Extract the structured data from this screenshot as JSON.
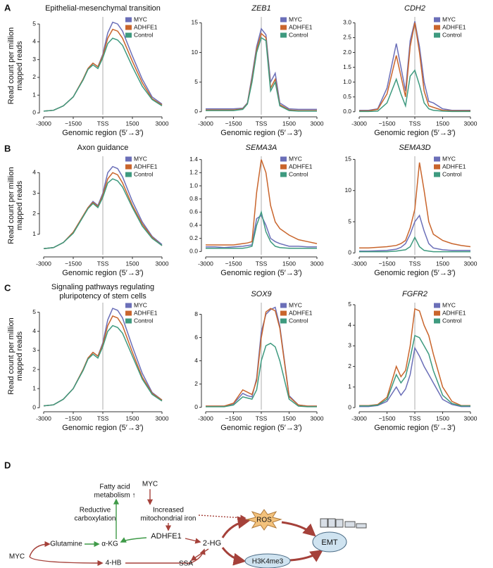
{
  "panels": [
    "A",
    "B",
    "C"
  ],
  "chart_data": [
    {
      "type": "line",
      "title": "Epithelial-mesenchymal transition",
      "ylabel": [
        "Read count per million",
        "mapped reads"
      ],
      "xlabel": "Genomic region (5′→3′)",
      "legend": "upper right",
      "x": [
        -3000,
        -2500,
        -2000,
        -1500,
        -1000,
        -750,
        -500,
        -250,
        0,
        250,
        500,
        750,
        1000,
        1500,
        2000,
        2500,
        3000
      ],
      "xlim": [
        -3000,
        3000
      ],
      "xticks": [
        -3000,
        {
          "value": -1500,
          "label": "−1500"
        },
        {
          "value": 0,
          "label": "TSS"
        },
        1500,
        3000
      ],
      "ylim": [
        -0.1,
        5.4
      ],
      "yticks": [
        0,
        1,
        2,
        3,
        4,
        5
      ],
      "series": [
        {
          "name": "MYC",
          "color": "#6b6fb8",
          "values": [
            0.1,
            0.15,
            0.4,
            0.9,
            1.9,
            2.5,
            2.8,
            2.6,
            3.3,
            4.5,
            5.1,
            5.0,
            4.6,
            3.2,
            1.9,
            0.9,
            0.5
          ]
        },
        {
          "name": "ADHFE1",
          "color": "#c9652c",
          "values": [
            0.1,
            0.15,
            0.4,
            0.9,
            1.9,
            2.5,
            2.8,
            2.6,
            3.2,
            4.2,
            4.7,
            4.6,
            4.2,
            2.9,
            1.7,
            0.8,
            0.45
          ]
        },
        {
          "name": "Control",
          "color": "#3e9a7f",
          "values": [
            0.1,
            0.15,
            0.4,
            0.9,
            1.85,
            2.45,
            2.7,
            2.5,
            3.1,
            3.9,
            4.2,
            4.1,
            3.8,
            2.6,
            1.5,
            0.75,
            0.4
          ]
        }
      ]
    },
    {
      "type": "line",
      "title": "ZEB1",
      "title_italic": true,
      "xlabel": "Genomic region (5′→3′)",
      "legend": "upper right",
      "x": [
        -3000,
        -2500,
        -2000,
        -1500,
        -1000,
        -750,
        -500,
        -250,
        0,
        250,
        500,
        750,
        1000,
        1500,
        2000,
        2500,
        3000
      ],
      "xlim": [
        -3000,
        3000
      ],
      "xticks": [
        -3000,
        {
          "value": -1500,
          "label": "−1500"
        },
        {
          "value": 0,
          "label": "TSS"
        },
        1500,
        3000
      ],
      "ylim": [
        -0.5,
        16
      ],
      "yticks": [
        0,
        5,
        10,
        15
      ],
      "series": [
        {
          "name": "MYC",
          "color": "#6b6fb8",
          "values": [
            0.5,
            0.5,
            0.5,
            0.5,
            0.6,
            1.5,
            6,
            11,
            14,
            13,
            5,
            6.5,
            1.5,
            0.5,
            0.4,
            0.4,
            0.4
          ]
        },
        {
          "name": "ADHFE1",
          "color": "#c9652c",
          "values": [
            0.3,
            0.3,
            0.3,
            0.3,
            0.5,
            1.4,
            5.5,
            10.5,
            13.2,
            12.5,
            4,
            5.5,
            1.2,
            0.3,
            0.2,
            0.2,
            0.2
          ]
        },
        {
          "name": "Control",
          "color": "#3e9a7f",
          "values": [
            0.2,
            0.2,
            0.2,
            0.2,
            0.4,
            1.3,
            5,
            10,
            12.5,
            12,
            3.5,
            5,
            1,
            0.2,
            0.1,
            0.1,
            0.1
          ]
        }
      ]
    },
    {
      "type": "line",
      "title": "CDH2",
      "title_italic": true,
      "xlabel": "Genomic region (5′→3′)",
      "legend": "upper right",
      "x": [
        -3000,
        -2500,
        -2000,
        -1500,
        -1000,
        -750,
        -500,
        -250,
        0,
        250,
        500,
        750,
        1000,
        1500,
        2000,
        2500,
        3000
      ],
      "xlim": [
        -3000,
        3000
      ],
      "xticks": [
        -3000,
        {
          "value": -1500,
          "label": "−1500"
        },
        {
          "value": 0,
          "label": "TSS"
        },
        1500,
        3000
      ],
      "ylim": [
        -0.1,
        3.2
      ],
      "yticks": [
        {
          "value": 0,
          "label": "0.0"
        },
        0.5,
        {
          "value": 1,
          "label": "1.0"
        },
        1.5,
        {
          "value": 2,
          "label": "2.0"
        },
        2.5,
        {
          "value": 3,
          "label": "3.0"
        }
      ],
      "series": [
        {
          "name": "MYC",
          "color": "#6b6fb8",
          "values": [
            0.05,
            0.05,
            0.1,
            0.8,
            2.3,
            1.5,
            0.7,
            2.4,
            3.05,
            2.2,
            1.0,
            0.35,
            0.3,
            0.1,
            0.05,
            0.05,
            0.05
          ]
        },
        {
          "name": "ADHFE1",
          "color": "#c9652c",
          "values": [
            0.03,
            0.03,
            0.08,
            0.6,
            1.9,
            1.2,
            0.5,
            2.2,
            3.0,
            2.0,
            0.7,
            0.2,
            0.15,
            0.05,
            0.03,
            0.03,
            0.03
          ]
        },
        {
          "name": "Control",
          "color": "#3e9a7f",
          "values": [
            0.01,
            0.01,
            0.02,
            0.3,
            1.1,
            0.6,
            0.2,
            1.2,
            1.4,
            0.9,
            0.3,
            0.1,
            0.05,
            0.02,
            0.01,
            0.01,
            0.01
          ]
        }
      ]
    },
    {
      "type": "line",
      "title": "Axon guidance",
      "ylabel": [
        "Read count per million",
        "mapped reads"
      ],
      "xlabel": "Genomic region (5′→3′)",
      "legend": "upper right",
      "x": [
        -3000,
        -2500,
        -2000,
        -1500,
        -1000,
        -750,
        -500,
        -250,
        0,
        250,
        500,
        750,
        1000,
        1500,
        2000,
        2500,
        3000
      ],
      "xlim": [
        -3000,
        3000
      ],
      "xticks": [
        -3000,
        {
          "value": -1500,
          "label": "−1500"
        },
        {
          "value": 0,
          "label": "TSS"
        },
        1500,
        3000
      ],
      "ylim": [
        0,
        4.8
      ],
      "yticks": [
        1,
        2,
        3,
        4
      ],
      "series": [
        {
          "name": "MYC",
          "color": "#6b6fb8",
          "values": [
            0.3,
            0.35,
            0.6,
            1.1,
            1.9,
            2.3,
            2.6,
            2.4,
            3.0,
            4.0,
            4.3,
            4.2,
            3.8,
            2.6,
            1.6,
            0.9,
            0.5
          ]
        },
        {
          "name": "ADHFE1",
          "color": "#c9652c",
          "values": [
            0.3,
            0.35,
            0.6,
            1.1,
            1.9,
            2.3,
            2.55,
            2.35,
            2.9,
            3.7,
            4.0,
            3.9,
            3.5,
            2.4,
            1.5,
            0.85,
            0.45
          ]
        },
        {
          "name": "Control",
          "color": "#3e9a7f",
          "values": [
            0.3,
            0.35,
            0.6,
            1.05,
            1.85,
            2.25,
            2.5,
            2.3,
            2.8,
            3.5,
            3.7,
            3.6,
            3.3,
            2.3,
            1.4,
            0.8,
            0.45
          ]
        }
      ]
    },
    {
      "type": "line",
      "title": "SEMA3A",
      "title_italic": true,
      "xlabel": "Genomic region (5′→3′)",
      "legend": "upper right",
      "x": [
        -3000,
        -2500,
        -2000,
        -1500,
        -1000,
        -750,
        -500,
        -250,
        0,
        250,
        500,
        750,
        1000,
        1500,
        2000,
        2500,
        3000
      ],
      "xlim": [
        -3000,
        3000
      ],
      "xticks": [
        -3000,
        {
          "value": -1500,
          "label": "−1500"
        },
        {
          "value": 0,
          "label": "TSS"
        },
        1500,
        3000
      ],
      "ylim": [
        -0.05,
        1.45
      ],
      "yticks": [
        {
          "value": 0,
          "label": "0.0"
        },
        0.2,
        0.4,
        0.6,
        0.8,
        {
          "value": 1,
          "label": "1.0"
        },
        1.2,
        1.4
      ],
      "series": [
        {
          "name": "MYC",
          "color": "#6b6fb8",
          "values": [
            0.07,
            0.07,
            0.06,
            0.07,
            0.08,
            0.09,
            0.1,
            0.5,
            0.55,
            0.4,
            0.2,
            0.15,
            0.12,
            0.08,
            0.08,
            0.07,
            0.07
          ]
        },
        {
          "name": "ADHFE1",
          "color": "#c9652c",
          "values": [
            0.1,
            0.1,
            0.1,
            0.1,
            0.12,
            0.13,
            0.15,
            0.9,
            1.4,
            1.2,
            0.7,
            0.45,
            0.35,
            0.25,
            0.18,
            0.15,
            0.12
          ]
        },
        {
          "name": "Control",
          "color": "#3e9a7f",
          "values": [
            0.05,
            0.05,
            0.05,
            0.05,
            0.05,
            0.06,
            0.08,
            0.4,
            0.6,
            0.3,
            0.15,
            0.08,
            0.06,
            0.05,
            0.05,
            0.05,
            0.05
          ]
        }
      ]
    },
    {
      "type": "line",
      "title": "SEMA3D",
      "title_italic": true,
      "xlabel": "Genomic region (5′→3′)",
      "legend": "upper right",
      "x": [
        -3000,
        -2500,
        -2000,
        -1500,
        -1000,
        -750,
        -500,
        -250,
        0,
        250,
        500,
        750,
        1000,
        1500,
        2000,
        2500,
        3000
      ],
      "xlim": [
        -3000,
        3000
      ],
      "xticks": [
        -3000,
        {
          "value": -1500,
          "label": "−1500"
        },
        {
          "value": 0,
          "label": "TSS"
        },
        1500,
        3000
      ],
      "ylim": [
        -0.3,
        15.5
      ],
      "yticks": [
        0,
        5,
        10,
        15
      ],
      "series": [
        {
          "name": "MYC",
          "color": "#6b6fb8",
          "values": [
            0.3,
            0.3,
            0.35,
            0.4,
            0.6,
            0.9,
            1.5,
            3,
            5,
            6,
            3.5,
            1.5,
            0.8,
            0.5,
            0.4,
            0.4,
            0.4
          ]
        },
        {
          "name": "ADHFE1",
          "color": "#c9652c",
          "values": [
            0.8,
            0.8,
            0.9,
            1,
            1.2,
            1.5,
            2,
            4,
            7,
            14.5,
            10,
            5,
            3,
            2,
            1.5,
            1.2,
            1
          ]
        },
        {
          "name": "Control",
          "color": "#3e9a7f",
          "values": [
            0.2,
            0.2,
            0.2,
            0.2,
            0.3,
            0.4,
            0.5,
            1,
            2.5,
            1,
            0.4,
            0.3,
            0.2,
            0.2,
            0.2,
            0.2,
            0.2
          ]
        }
      ]
    },
    {
      "type": "line",
      "title": [
        "Signaling pathways regulating",
        "pluripotency of stem cells"
      ],
      "ylabel": [
        "Read count per million",
        "mapped reads"
      ],
      "xlabel": "Genomic region (5′→3′)",
      "legend": "upper right",
      "x": [
        -3000,
        -2500,
        -2000,
        -1500,
        -1000,
        -750,
        -500,
        -250,
        0,
        250,
        500,
        750,
        1000,
        1500,
        2000,
        2500,
        3000
      ],
      "xlim": [
        -3000,
        3000
      ],
      "xticks": [
        -3000,
        {
          "value": -1500,
          "label": "−1500"
        },
        {
          "value": 0,
          "label": "TSS"
        },
        1500,
        3000
      ],
      "ylim": [
        -0.1,
        5.5
      ],
      "yticks": [
        0,
        1,
        2,
        3,
        4,
        5
      ],
      "series": [
        {
          "name": "MYC",
          "color": "#6b6fb8",
          "values": [
            0.1,
            0.15,
            0.45,
            1.0,
            2.0,
            2.6,
            2.9,
            2.7,
            3.4,
            4.6,
            5.2,
            5.1,
            4.7,
            3.2,
            1.8,
            0.8,
            0.4
          ]
        },
        {
          "name": "ADHFE1",
          "color": "#c9652c",
          "values": [
            0.1,
            0.15,
            0.45,
            1.0,
            2.0,
            2.6,
            2.9,
            2.7,
            3.3,
            4.3,
            4.8,
            4.7,
            4.3,
            2.9,
            1.6,
            0.75,
            0.4
          ]
        },
        {
          "name": "Control",
          "color": "#3e9a7f",
          "values": [
            0.1,
            0.15,
            0.45,
            1.0,
            1.95,
            2.55,
            2.8,
            2.6,
            3.2,
            4.0,
            4.3,
            4.2,
            3.9,
            2.7,
            1.5,
            0.7,
            0.35
          ]
        }
      ]
    },
    {
      "type": "line",
      "title": "SOX9",
      "title_italic": true,
      "xlabel": "Genomic region (5′→3′)",
      "legend": "upper right",
      "x": [
        -3000,
        -2500,
        -2000,
        -1500,
        -1000,
        -750,
        -500,
        -250,
        0,
        250,
        500,
        750,
        1000,
        1500,
        2000,
        2500,
        3000
      ],
      "xlim": [
        -3000,
        3000
      ],
      "xticks": [
        -3000,
        {
          "value": -1500,
          "label": "−1500"
        },
        {
          "value": 0,
          "label": "TSS"
        },
        1500,
        3000
      ],
      "ylim": [
        -0.2,
        9
      ],
      "yticks": [
        0,
        2,
        4,
        6,
        8
      ],
      "series": [
        {
          "name": "MYC",
          "color": "#6b6fb8",
          "values": [
            0.1,
            0.1,
            0.1,
            0.3,
            1.2,
            1.0,
            0.9,
            2.5,
            6.5,
            8.0,
            8.4,
            8.6,
            7.0,
            1.0,
            0.2,
            0.1,
            0.1
          ]
        },
        {
          "name": "ADHFE1",
          "color": "#c9652c",
          "values": [
            0.1,
            0.1,
            0.1,
            0.35,
            1.5,
            1.3,
            1.1,
            2.3,
            6,
            8.2,
            8.5,
            8.3,
            6.8,
            0.9,
            0.2,
            0.1,
            0.1
          ]
        },
        {
          "name": "Control",
          "color": "#3e9a7f",
          "values": [
            0.05,
            0.05,
            0.05,
            0.2,
            0.9,
            0.8,
            0.7,
            1.5,
            4,
            5.3,
            5.5,
            5.2,
            4.0,
            0.7,
            0.1,
            0.05,
            0.05
          ]
        }
      ]
    },
    {
      "type": "line",
      "title": "FGFR2",
      "title_italic": true,
      "xlabel": "Genomic region (5′→3′)",
      "legend": "upper right",
      "x": [
        -3000,
        -2500,
        -2000,
        -1500,
        -1000,
        -750,
        -500,
        -250,
        0,
        250,
        500,
        750,
        1000,
        1500,
        2000,
        2500,
        3000
      ],
      "xlim": [
        -3000,
        3000
      ],
      "xticks": [
        -3000,
        {
          "value": -1500,
          "label": "−1500"
        },
        {
          "value": 0,
          "label": "TSS"
        },
        1500,
        3000
      ],
      "ylim": [
        -0.1,
        5.1
      ],
      "yticks": [
        0,
        1,
        2,
        3,
        4,
        5
      ],
      "series": [
        {
          "name": "MYC",
          "color": "#6b6fb8",
          "values": [
            0.05,
            0.05,
            0.1,
            0.3,
            1.0,
            0.6,
            0.9,
            1.6,
            2.9,
            2.5,
            2.0,
            1.6,
            1.2,
            0.4,
            0.15,
            0.05,
            0.05
          ]
        },
        {
          "name": "ADHFE1",
          "color": "#c9652c",
          "values": [
            0.1,
            0.1,
            0.15,
            0.5,
            2.0,
            1.5,
            1.8,
            3.0,
            4.8,
            4.7,
            4.0,
            3.5,
            2.6,
            1.0,
            0.3,
            0.1,
            0.1
          ]
        },
        {
          "name": "Control",
          "color": "#3e9a7f",
          "values": [
            0.08,
            0.08,
            0.12,
            0.4,
            1.6,
            1.2,
            1.5,
            2.4,
            3.5,
            3.4,
            3.0,
            2.6,
            1.8,
            0.6,
            0.2,
            0.08,
            0.08
          ]
        }
      ]
    }
  ],
  "diagram": {
    "panel": "D",
    "fatty": [
      "Fatty acid",
      "metabolism ↑"
    ],
    "myc_top": "MYC",
    "reductive": [
      "Reductive",
      "carboxylation"
    ],
    "iron": [
      "Increased",
      "mitochondrial iron"
    ],
    "ros": "ROS",
    "adhfe1": "ADHFE1",
    "glutamine": "Glutamine",
    "akg": "α-KG",
    "hg2": "2-HG",
    "emt": "EMT",
    "myc_left": "MYC",
    "hb4": "4-HB",
    "ssa": "SSA",
    "h3k4me3": "H3K4me3"
  }
}
